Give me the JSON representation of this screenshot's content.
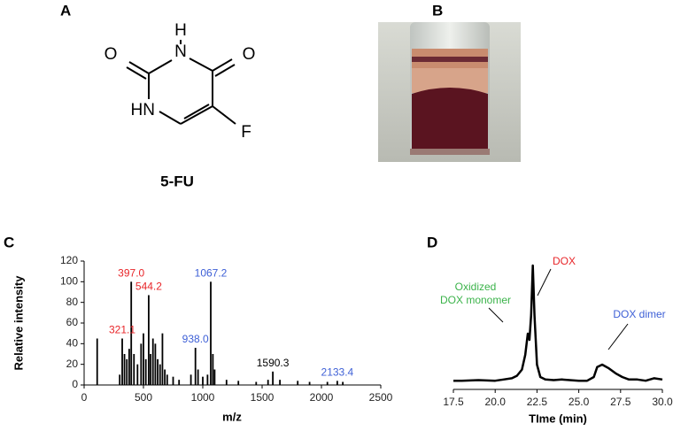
{
  "panel_labels": [
    "A",
    "B",
    "C",
    "D"
  ],
  "structure": {
    "atoms": [
      "O",
      "H",
      "N",
      "O",
      "HN",
      "F"
    ],
    "name": "5-FU"
  },
  "chart_data": [
    {
      "type": "spectrum",
      "xlabel": "m/z",
      "ylabel": "Relative intensity",
      "x": [
        110,
        300,
        321.1,
        340,
        360,
        380,
        397.0,
        420,
        450,
        480,
        500,
        520,
        544.2,
        560,
        580,
        600,
        620,
        640,
        660,
        680,
        700,
        750,
        800,
        900,
        938.0,
        960,
        1000,
        1040,
        1067.2,
        1085,
        1100,
        1200,
        1300,
        1450,
        1550,
        1590.3,
        1650,
        1800,
        1900,
        2050,
        2133.4,
        2180
      ],
      "values": [
        45,
        10,
        45,
        30,
        25,
        35,
        100,
        30,
        20,
        40,
        50,
        25,
        87,
        30,
        45,
        40,
        25,
        20,
        50,
        15,
        10,
        8,
        5,
        10,
        36,
        15,
        8,
        10,
        100,
        30,
        15,
        5,
        4,
        3,
        5,
        13,
        5,
        4,
        3,
        3,
        4,
        3
      ],
      "color": "#000000",
      "xlim": [
        0,
        2500
      ],
      "xticks": [
        0,
        500,
        1000,
        1500,
        2000,
        2500
      ],
      "ylim": [
        0,
        120
      ],
      "yticks": [
        0,
        20,
        40,
        60,
        80,
        100,
        120
      ],
      "annotations": [
        {
          "text": "321.1",
          "x": 321.1,
          "y": 45,
          "color": "#e8262a"
        },
        {
          "text": "397.0",
          "x": 397.0,
          "y": 100,
          "color": "#e8262a"
        },
        {
          "text": "544.2",
          "x": 544.2,
          "y": 87,
          "color": "#e8262a"
        },
        {
          "text": "938.0",
          "x": 938.0,
          "y": 36,
          "color": "#3d5fd6"
        },
        {
          "text": "1067.2",
          "x": 1067.2,
          "y": 100,
          "color": "#3d5fd6"
        },
        {
          "text": "1590.3",
          "x": 1590.3,
          "y": 13,
          "color": "#000000"
        },
        {
          "text": "2133.4",
          "x": 2133.4,
          "y": 4,
          "color": "#3d5fd6"
        }
      ]
    },
    {
      "type": "line",
      "xlabel": "TIme (min)",
      "x": [
        17.5,
        18,
        19,
        20,
        20.5,
        21,
        21.3,
        21.6,
        21.8,
        21.95,
        22.05,
        22.15,
        22.25,
        22.35,
        22.5,
        22.7,
        23,
        23.5,
        24,
        25,
        25.5,
        25.9,
        26.1,
        26.4,
        26.8,
        27.2,
        27.6,
        28,
        28.5,
        29,
        29.5,
        30
      ],
      "series": [
        {
          "color": "#000000",
          "values": [
            7,
            7,
            7.5,
            7,
            8,
            9,
            11,
            16,
            28,
            45,
            40,
            60,
            100,
            60,
            20,
            10,
            8,
            7.5,
            8,
            7,
            7,
            10,
            18,
            20,
            17,
            13,
            10,
            8,
            8,
            7,
            9,
            8
          ]
        }
      ],
      "xlim": [
        17.5,
        30
      ],
      "xticks": [
        17.5,
        {
          "value": 20,
          "label": "20.0"
        },
        22.5,
        {
          "value": 25,
          "label": "25.0"
        },
        27.5,
        {
          "value": 30,
          "label": "30.0"
        }
      ],
      "ylim": [
        0,
        100
      ],
      "annotations": [
        {
          "lines": [
            "Oxidized",
            "DOX monomer"
          ],
          "color": "#3bb34a"
        },
        {
          "lines": [
            "DOX"
          ],
          "color": "#e8262a"
        },
        {
          "lines": [
            "DOX dimer"
          ],
          "color": "#3d5fd6"
        }
      ]
    }
  ]
}
